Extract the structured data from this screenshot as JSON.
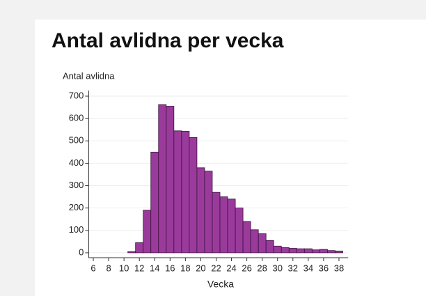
{
  "chart_data": {
    "type": "bar",
    "title": "Antal avlidna per vecka",
    "y_label": "Antal avlidna",
    "x_label": "Vecka",
    "x": [
      11,
      12,
      13,
      14,
      15,
      16,
      17,
      18,
      19,
      20,
      21,
      22,
      23,
      24,
      25,
      26,
      27,
      28,
      29,
      30,
      31,
      32,
      33,
      34,
      35,
      36,
      37,
      38
    ],
    "values": [
      5,
      45,
      190,
      450,
      662,
      655,
      545,
      543,
      515,
      380,
      365,
      270,
      250,
      240,
      200,
      140,
      103,
      85,
      55,
      30,
      23,
      20,
      18,
      18,
      13,
      15,
      10,
      8
    ],
    "color": "#9a3b9c",
    "xlim": [
      5.4,
      39.2
    ],
    "xticks": [
      6,
      8,
      10,
      12,
      14,
      16,
      18,
      20,
      22,
      24,
      26,
      28,
      30,
      32,
      34,
      36,
      38
    ],
    "ylim": [
      -22,
      725
    ],
    "yticks": [
      0,
      100,
      200,
      300,
      400,
      500,
      600,
      700
    ],
    "grid": true
  }
}
